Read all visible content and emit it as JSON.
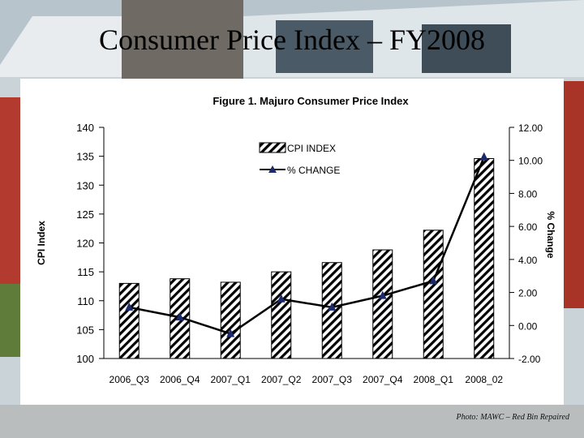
{
  "slide": {
    "title": "Consumer Price Index – FY2008",
    "caption": "Photo: MAWC – Red Bin Repaired"
  },
  "colors": {
    "bar_hatch": "#000000",
    "line": "#000000",
    "marker": "#1a2a6c",
    "panel": "#ffffff"
  },
  "chart_data": {
    "type": "bar",
    "title": "Figure 1.  Majuro Consumer Price Index",
    "categories": [
      "2006_Q3",
      "2006_Q4",
      "2007_Q1",
      "2007_Q2",
      "2007_Q3",
      "2007_Q4",
      "2008_Q1",
      "2008_02"
    ],
    "series": [
      {
        "name": "CPI INDEX",
        "type": "bar",
        "axis": "left",
        "values": [
          113.0,
          113.8,
          113.2,
          115.0,
          116.6,
          118.8,
          122.2,
          134.6
        ]
      },
      {
        "name": "% CHANGE",
        "type": "line",
        "axis": "right",
        "values": [
          1.1,
          0.5,
          -0.5,
          1.6,
          1.1,
          1.8,
          2.7,
          10.2
        ]
      }
    ],
    "ylabel": "CPI Index",
    "y2label": "% Change",
    "ylim": [
      100,
      140
    ],
    "y2lim": [
      -2,
      12
    ],
    "yticks": [
      "100",
      "105",
      "110",
      "115",
      "120",
      "125",
      "130",
      "135",
      "140"
    ],
    "y2ticks": [
      "-2.00",
      "0.00",
      "2.00",
      "4.00",
      "6.00",
      "8.00",
      "10.00",
      "12.00"
    ],
    "legend_position": "top-center",
    "grid": false
  }
}
